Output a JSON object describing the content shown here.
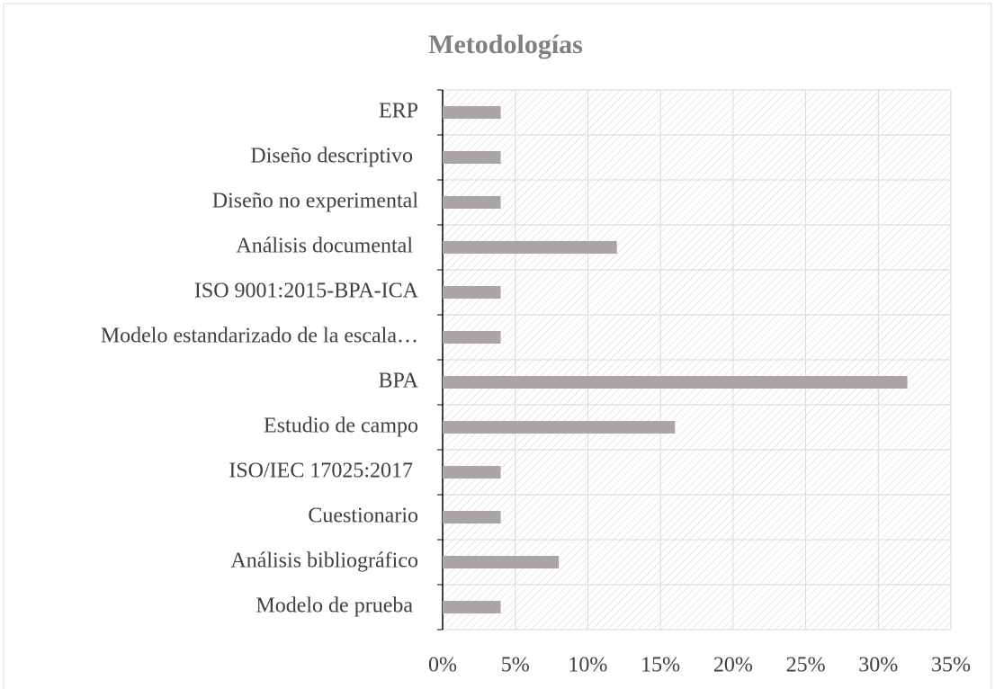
{
  "chart_data": {
    "type": "bar",
    "orientation": "horizontal",
    "title": "Metodologías",
    "categories": [
      "ERP",
      "Diseño descriptivo ",
      "Diseño no experimental",
      "Análisis documental ",
      "ISO 9001:2015-BPA-ICA",
      "Modelo estandarizado de la escala…",
      "BPA",
      "Estudio de campo",
      "ISO/IEC 17025:2017 ",
      "Cuestionario",
      "Análisis bibliográfico",
      "Modelo de prueba "
    ],
    "values": [
      4,
      4,
      4,
      12,
      4,
      4,
      32,
      16,
      4,
      4,
      8,
      4
    ],
    "color": "#aba5a5",
    "xlim": [
      0,
      35
    ],
    "xticks": [
      {
        "value": 0,
        "label": "0%"
      },
      {
        "value": 5,
        "label": "5%"
      },
      {
        "value": 10,
        "label": "10%"
      },
      {
        "value": 15,
        "label": "15%"
      },
      {
        "value": 20,
        "label": "20%"
      },
      {
        "value": 25,
        "label": "25%"
      },
      {
        "value": 30,
        "label": "30%"
      },
      {
        "value": 35,
        "label": "35%"
      }
    ],
    "grid": true
  }
}
